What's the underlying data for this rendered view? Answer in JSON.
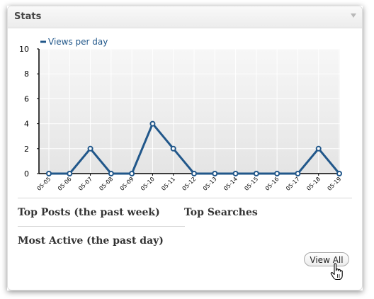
{
  "widget": {
    "title": "Stats"
  },
  "chart_data": {
    "type": "line",
    "title": "",
    "legend": [
      "Views per day"
    ],
    "legend_position": "top-left",
    "x": [
      "05-05",
      "05-06",
      "05-07",
      "05-08",
      "05-09",
      "05-10",
      "05-11",
      "05-12",
      "05-13",
      "05-14",
      "05-15",
      "05-16",
      "05-17",
      "05-18",
      "05-19"
    ],
    "series": [
      {
        "name": "Views per day",
        "values": [
          0,
          0,
          2,
          0,
          0,
          4,
          2,
          0,
          0,
          0,
          0,
          0,
          0,
          2,
          0
        ]
      }
    ],
    "xlabel": "",
    "ylabel": "",
    "ylim": [
      0,
      10
    ],
    "yticks": [
      "0",
      "2",
      "4",
      "6",
      "8",
      "10"
    ],
    "grid": true,
    "color": "#21578a"
  },
  "sections": {
    "top_posts": "Top Posts (the past week)",
    "top_searches": "Top Searches",
    "most_active": "Most Active (the past day)"
  },
  "actions": {
    "view_all": "View All"
  }
}
